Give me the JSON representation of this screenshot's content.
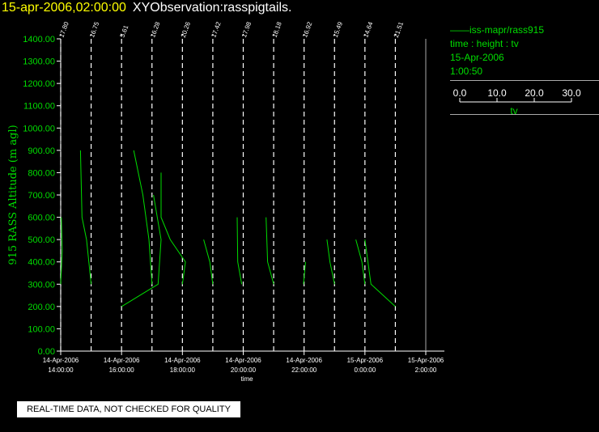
{
  "header": {
    "timestamp": "15-apr-2006,02:00:00",
    "observation": "XYObservation:rasspigtails."
  },
  "legend": {
    "series_label": "——iss-mapr/rass915",
    "variables": "time : height : tv",
    "date": "15-Apr-2006",
    "time": "1:00:50",
    "scale_ticks": [
      "0.0",
      "10.0",
      "20.0",
      "30.0"
    ],
    "scale_label": "tv"
  },
  "footer": {
    "qc_note": "REAL-TIME DATA, NOT CHECKED FOR QUALITY"
  },
  "colors": {
    "trace": "#00dd00",
    "axis": "#ffffff",
    "label": "#00dd00"
  },
  "chart_data": {
    "type": "line",
    "ylabel": "915 RASS Altitude (m agl)",
    "xlabel": "time",
    "ylim": [
      0,
      1400
    ],
    "yticks": [
      "0.00",
      "100.00",
      "200.00",
      "300.00",
      "400.00",
      "500.00",
      "600.00",
      "700.00",
      "800.00",
      "900.00",
      "1000.00",
      "1100.00",
      "1200.00",
      "1300.00",
      "1400.00"
    ],
    "xticks": [
      {
        "hour": 14,
        "date": "14-Apr-2006",
        "time": "14:00:00"
      },
      {
        "hour": 16,
        "date": "14-Apr-2006",
        "time": "16:00:00"
      },
      {
        "hour": 18,
        "date": "14-Apr-2006",
        "time": "18:00:00"
      },
      {
        "hour": 20,
        "date": "14-Apr-2006",
        "time": "20:00:00"
      },
      {
        "hour": 22,
        "date": "14-Apr-2006",
        "time": "22:00:00"
      },
      {
        "hour": 24,
        "date": "15-Apr-2006",
        "time": "0:00:00"
      },
      {
        "hour": 26,
        "date": "15-Apr-2006",
        "time": "2:00:00"
      }
    ],
    "profiles": [
      {
        "hour": 14.0,
        "value": "17.80"
      },
      {
        "hour": 15.0,
        "value": "16.75"
      },
      {
        "hour": 16.0,
        "value": "5.61"
      },
      {
        "hour": 17.0,
        "value": "16.28"
      },
      {
        "hour": 18.0,
        "value": "20.26"
      },
      {
        "hour": 19.0,
        "value": "17.42"
      },
      {
        "hour": 20.0,
        "value": "17.98"
      },
      {
        "hour": 21.0,
        "value": "18.18"
      },
      {
        "hour": 22.0,
        "value": "16.92"
      },
      {
        "hour": 23.0,
        "value": "15.49"
      },
      {
        "hour": 24.0,
        "value": "14.64"
      },
      {
        "hour": 25.0,
        "value": "21.51"
      }
    ],
    "traces": [
      [
        [
          14.0,
          300
        ],
        [
          14.05,
          450
        ],
        [
          14.02,
          600
        ]
      ],
      [
        [
          14.65,
          900
        ],
        [
          14.7,
          600
        ],
        [
          14.85,
          500
        ],
        [
          15.0,
          300
        ]
      ],
      [
        [
          16.0,
          200
        ],
        [
          17.2,
          300
        ],
        [
          17.3,
          500
        ],
        [
          17.05,
          700
        ]
      ],
      [
        [
          16.4,
          900
        ],
        [
          16.7,
          700
        ],
        [
          16.9,
          500
        ],
        [
          17.0,
          300
        ]
      ],
      [
        [
          17.3,
          800
        ],
        [
          17.3,
          600
        ],
        [
          17.6,
          500
        ],
        [
          18.1,
          400
        ],
        [
          18.0,
          300
        ]
      ],
      [
        [
          18.7,
          500
        ],
        [
          18.9,
          400
        ],
        [
          19.0,
          300
        ]
      ],
      [
        [
          19.8,
          600
        ],
        [
          19.82,
          400
        ],
        [
          19.95,
          300
        ]
      ],
      [
        [
          20.75,
          600
        ],
        [
          20.8,
          400
        ],
        [
          21.0,
          300
        ]
      ],
      [
        [
          22.05,
          400
        ],
        [
          21.98,
          300
        ]
      ],
      [
        [
          22.75,
          500
        ],
        [
          22.85,
          400
        ],
        [
          23.0,
          300
        ]
      ],
      [
        [
          23.7,
          500
        ],
        [
          23.9,
          400
        ],
        [
          24.0,
          300
        ]
      ],
      [
        [
          24.0,
          500
        ],
        [
          24.2,
          300
        ],
        [
          25.0,
          200
        ]
      ]
    ]
  }
}
